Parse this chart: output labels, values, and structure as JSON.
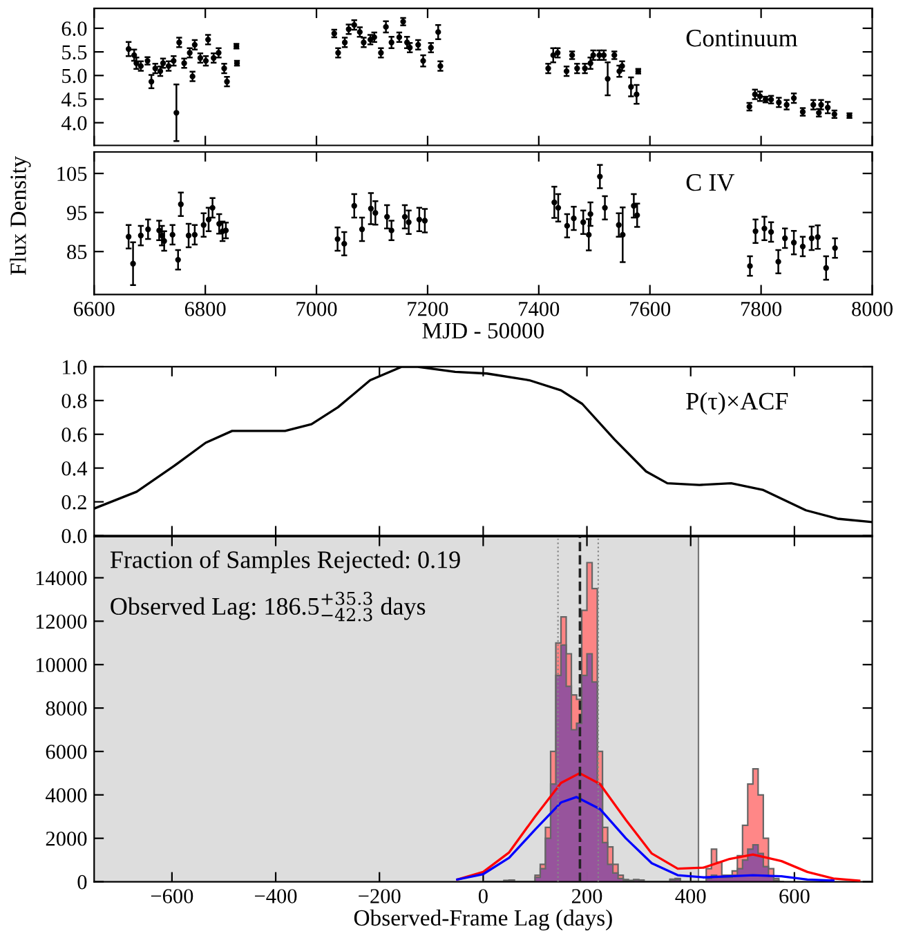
{
  "chart_data": [
    {
      "type": "scatter",
      "ylabel": "Flux Density",
      "annotations": [
        "Continuum"
      ],
      "marker": "circle",
      "color": "#000000",
      "xlim": [
        6600,
        8000
      ],
      "xticks": [
        6600,
        6800,
        7000,
        7200,
        7400,
        7600,
        7800,
        8000
      ],
      "ylim": [
        3.52,
        6.42
      ],
      "yticks": [
        {
          "value": 4,
          "label": "4.0"
        },
        4.5,
        {
          "value": 5,
          "label": "5.0"
        },
        5.5,
        {
          "value": 6,
          "label": "6.0"
        }
      ],
      "tick_labels": "y",
      "x": [
        6662,
        6672,
        6676,
        6684,
        6696,
        6703,
        6710,
        6719,
        6724,
        6734,
        6743,
        6748,
        6753,
        6762,
        6772,
        6777,
        6781,
        6791,
        6801,
        6805,
        6815,
        6824,
        6834,
        6839,
        6856,
        6857,
        7032,
        7039,
        7051,
        7058,
        7068,
        7078,
        7085,
        7097,
        7104,
        7116,
        7125,
        7135,
        7149,
        7156,
        7163,
        7168,
        7183,
        7192,
        7206,
        7219,
        7223,
        7417,
        7426,
        7434,
        7450,
        7460,
        7469,
        7483,
        7493,
        7498,
        7509,
        7517,
        7524,
        7536,
        7545,
        7550,
        7566,
        7576,
        7579,
        7779,
        7789,
        7798,
        7808,
        7818,
        7832,
        7846,
        7859,
        7875,
        7894,
        7904,
        7908,
        7920,
        7932,
        7959
      ],
      "values": [
        5.56,
        5.43,
        5.26,
        5.2,
        5.31,
        4.87,
        5.15,
        5.09,
        5.26,
        5.2,
        5.31,
        4.21,
        5.7,
        5.26,
        5.48,
        4.98,
        5.65,
        5.37,
        5.31,
        5.76,
        5.37,
        5.48,
        5.15,
        4.87,
        5.62,
        5.26,
        5.89,
        5.48,
        5.7,
        5.98,
        6.07,
        5.92,
        5.7,
        5.76,
        5.81,
        5.48,
        6.03,
        5.7,
        5.81,
        6.14,
        5.7,
        5.59,
        5.65,
        5.31,
        5.59,
        5.92,
        5.2,
        5.15,
        5.43,
        5.48,
        5.09,
        5.43,
        5.15,
        5.15,
        5.26,
        5.43,
        5.43,
        5.43,
        4.93,
        5.43,
        5.09,
        5.2,
        4.76,
        4.6,
        5.09,
        4.34,
        4.6,
        4.56,
        4.49,
        4.49,
        4.43,
        4.38,
        4.52,
        4.23,
        4.38,
        4.21,
        4.38,
        4.32,
        4.18,
        4.15
      ],
      "errors": [
        0.15,
        0.12,
        0.12,
        0.1,
        0.08,
        0.14,
        0.1,
        0.1,
        0.1,
        0.1,
        0.1,
        0.6,
        0.1,
        0.1,
        0.1,
        0.1,
        0.1,
        0.1,
        0.1,
        0.1,
        0.1,
        0.1,
        0.1,
        0.1,
        0.05,
        0.05,
        0.08,
        0.1,
        0.1,
        0.1,
        0.1,
        0.1,
        0.1,
        0.1,
        0.1,
        0.1,
        0.12,
        0.12,
        0.1,
        0.08,
        0.12,
        0.1,
        0.1,
        0.12,
        0.1,
        0.15,
        0.1,
        0.1,
        0.15,
        0.1,
        0.1,
        0.08,
        0.1,
        0.1,
        0.12,
        0.1,
        0.1,
        0.1,
        0.35,
        0.08,
        0.12,
        0.1,
        0.2,
        0.2,
        0.05,
        0.08,
        0.1,
        0.1,
        0.06,
        0.08,
        0.1,
        0.1,
        0.1,
        0.08,
        0.1,
        0.08,
        0.1,
        0.12,
        0.08,
        0.05
      ]
    },
    {
      "type": "scatter",
      "xlabel": "MJD - 50000",
      "annotations": [
        "C IV"
      ],
      "marker": "circle",
      "color": "#000000",
      "xlim": [
        6600,
        8000
      ],
      "xticks": [
        6600,
        6800,
        7000,
        7200,
        7400,
        7600,
        7800,
        8000
      ],
      "ylim": [
        74,
        110.5
      ],
      "yticks": [
        85,
        95,
        105
      ],
      "x": [
        6662,
        6670,
        6684,
        6697,
        6717,
        6722,
        6726,
        6741,
        6751,
        6756,
        6770,
        6781,
        6797,
        6806,
        6813,
        6825,
        6831,
        6837,
        7038,
        7050,
        7068,
        7082,
        7098,
        7106,
        7127,
        7135,
        7159,
        7166,
        7185,
        7195,
        7428,
        7435,
        7451,
        7463,
        7480,
        7490,
        7493,
        7510,
        7519,
        7544,
        7551,
        7571,
        7577,
        7780,
        7790,
        7806,
        7818,
        7831,
        7843,
        7859,
        7875,
        7891,
        7902,
        7917,
        7933
      ],
      "values": [
        88.8,
        81.9,
        89.1,
        90.7,
        90.4,
        89.1,
        87.7,
        89.3,
        82.9,
        97.1,
        89.1,
        89.3,
        91.8,
        93.2,
        96.2,
        92.1,
        90.2,
        90.4,
        88.2,
        87.0,
        96.7,
        90.7,
        96.0,
        94.9,
        93.9,
        90.4,
        93.9,
        92.5,
        93.2,
        92.9,
        97.6,
        96.2,
        91.6,
        93.5,
        92.5,
        89.3,
        94.6,
        104.2,
        96.2,
        91.8,
        89.3,
        96.7,
        94.3,
        81.3,
        90.2,
        90.9,
        90.0,
        82.4,
        88.4,
        87.3,
        86.3,
        88.4,
        88.7,
        80.8,
        85.9
      ],
      "errors": [
        3,
        5.5,
        2.5,
        2.5,
        2.5,
        2.5,
        2.5,
        2.5,
        2.5,
        3,
        3,
        2.5,
        3,
        3,
        2.5,
        2.5,
        2.5,
        2,
        3,
        3,
        3,
        3,
        4,
        3,
        3,
        2.5,
        3,
        3,
        3,
        3,
        4,
        3.5,
        3,
        3,
        3,
        4,
        3,
        3,
        3,
        3,
        7,
        3,
        3,
        2.5,
        3,
        3,
        2.5,
        3,
        2.5,
        3,
        2.5,
        3,
        3,
        3,
        2.5
      ]
    },
    {
      "type": "line",
      "annotations": [
        "P(τ)×ACF"
      ],
      "color": "#000000",
      "line_style": "solid",
      "xlim": [
        -750,
        750
      ],
      "xticks": [
        -600,
        -400,
        -200,
        0,
        200,
        400,
        600
      ],
      "ylim": [
        0,
        1.0
      ],
      "yticks": [
        {
          "value": 0,
          "label": "0.0"
        },
        0.2,
        0.4,
        0.6,
        0.8,
        {
          "value": 1,
          "label": "1.0"
        }
      ],
      "tick_labels": "y",
      "x": [
        -750,
        -668,
        -597,
        -535,
        -484,
        -433,
        -382,
        -331,
        -280,
        -218,
        -157,
        -126,
        -54,
        7,
        89,
        150,
        191,
        253,
        314,
        355,
        417,
        478,
        540,
        622,
        683,
        750
      ],
      "values": [
        0.16,
        0.26,
        0.41,
        0.55,
        0.62,
        0.62,
        0.62,
        0.66,
        0.76,
        0.92,
        1.0,
        1.0,
        0.97,
        0.96,
        0.92,
        0.86,
        0.78,
        0.57,
        0.38,
        0.31,
        0.3,
        0.31,
        0.27,
        0.15,
        0.1,
        0.08
      ]
    },
    {
      "type": "histogram",
      "xlabel": "Observed-Frame Lag (days)",
      "annotations": [
        "Fraction of Samples Rejected: 0.19",
        "Observed Lag: 186.5$^{+35.3}$$_{−42.3}$ days"
      ],
      "xlim": [
        -750,
        750
      ],
      "xticks": [
        -600,
        -400,
        -200,
        0,
        200,
        400,
        600
      ],
      "ylim": [
        0,
        15900
      ],
      "yticks": [
        0,
        2000,
        4000,
        6000,
        8000,
        10000,
        12000,
        14000
      ],
      "bands": [
        {
          "axis": "x",
          "from": -750,
          "to": 415,
          "color": "#dddddd"
        }
      ],
      "ref_lines": [
        {
          "axis": "x",
          "value": 186.5,
          "color": "#222222",
          "line_style": "dashed"
        },
        {
          "axis": "x",
          "value": 415,
          "color": "#777777",
          "line_style": "solid"
        },
        {
          "axis": "x",
          "value": 144.2,
          "color": "#888888",
          "line_style": "dotted"
        },
        {
          "axis": "x",
          "value": 221.8,
          "color": "#888888",
          "line_style": "dotted"
        }
      ],
      "bins": [
        0,
        10,
        20,
        30,
        40,
        50,
        60,
        70,
        80,
        90,
        100,
        110,
        120,
        130,
        140,
        150,
        160,
        170,
        180,
        190,
        200,
        210,
        220,
        230,
        240,
        250,
        260,
        270,
        280,
        290,
        300,
        310,
        320,
        330,
        340,
        350,
        360,
        370,
        380,
        390,
        400,
        410,
        420,
        430,
        440,
        450,
        460,
        470,
        480,
        490,
        500,
        510,
        520,
        530,
        540,
        550,
        560,
        570,
        580
      ],
      "series": [
        {
          "type": "histogram",
          "color": "#ff7a7a",
          "values": [
            0,
            0,
            0,
            0,
            60,
            80,
            0,
            0,
            0,
            0,
            300,
            800,
            2500,
            6000,
            11000,
            12200,
            10500,
            8600,
            8400,
            12500,
            14700,
            13500,
            6000,
            2500,
            1600,
            800,
            300,
            100,
            60,
            100,
            80,
            0,
            0,
            0,
            0,
            0,
            120,
            150,
            0,
            0,
            0,
            0,
            0,
            600,
            1500,
            900,
            300,
            300,
            500,
            1200,
            2600,
            4500,
            5200,
            4000,
            2000,
            600,
            150,
            0
          ]
        },
        {
          "type": "histogram",
          "color": "#8c4f9f",
          "values": [
            0,
            0,
            0,
            0,
            40,
            60,
            0,
            0,
            0,
            0,
            200,
            600,
            2000,
            4500,
            9500,
            10900,
            9000,
            7000,
            7300,
            9500,
            10500,
            9200,
            4500,
            1800,
            800,
            400,
            150,
            50,
            40,
            80,
            60,
            0,
            0,
            0,
            0,
            0,
            80,
            100,
            0,
            0,
            0,
            0,
            0,
            150,
            300,
            200,
            200,
            200,
            300,
            600,
            1000,
            1500,
            1700,
            1300,
            700,
            250,
            60,
            0
          ]
        },
        {
          "type": "line",
          "color": "#ff0000",
          "x": [
            -50,
            0,
            50,
            100,
            150,
            186,
            225,
            275,
            325,
            375,
            425,
            475,
            520,
            575,
            625,
            675,
            725
          ],
          "values": [
            100,
            450,
            1350,
            3000,
            4550,
            5000,
            4500,
            2850,
            1300,
            600,
            650,
            1050,
            1250,
            950,
            450,
            150,
            50
          ]
        },
        {
          "type": "line",
          "color": "#0000ff",
          "x": [
            -50,
            0,
            50,
            100,
            150,
            180,
            225,
            275,
            325,
            375,
            425,
            475,
            520,
            575,
            625,
            675
          ],
          "values": [
            100,
            350,
            1100,
            2400,
            3650,
            3900,
            3350,
            2000,
            850,
            300,
            200,
            250,
            300,
            250,
            100,
            50
          ]
        }
      ]
    }
  ]
}
